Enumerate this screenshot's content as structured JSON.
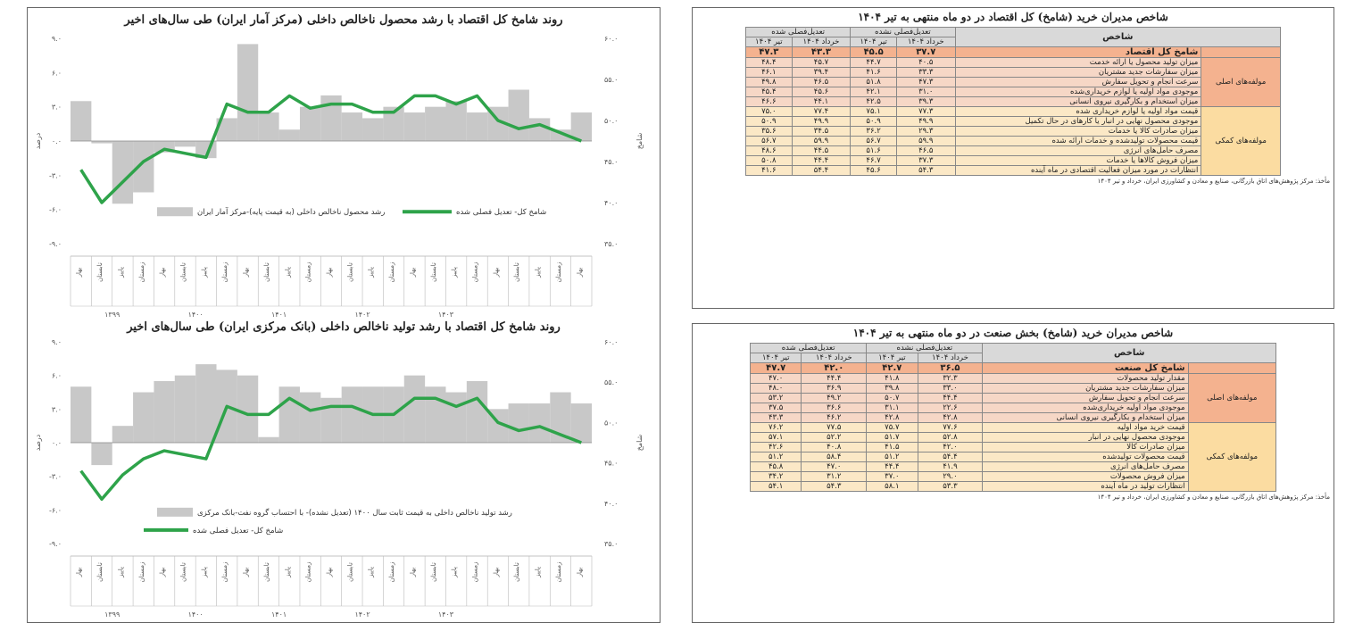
{
  "colors": {
    "bar": "#c8c8c8",
    "line": "#2ea34a",
    "axis": "#888888",
    "op_total": "#f4b28f",
    "op_row": "#f6d7c6",
    "sp_row": "#fbe8c6"
  },
  "chart_data": [
    {
      "type": "bar",
      "title": "روند شامخ کل اقتصاد با رشد محصول ناخالص داخلی (مرکز آمار ایران) طی سال‌های اخیر",
      "left_ticks": [
        "۹.۰",
        "۶.۰",
        "۳.۰",
        "۰.۰",
        "-۳.۰",
        "-۶.۰",
        "-۹.۰"
      ],
      "right_ticks": [
        "۶۰.۰",
        "۵۵.۰",
        "۵۰.۰",
        "۴۵.۰",
        "۴۰.۰",
        "۳۵.۰"
      ],
      "ylim_left": [
        -9,
        9
      ],
      "ylim_right": [
        35,
        60
      ],
      "ylabel_left": "درصد",
      "ylabel_right": "شامخ",
      "legend_bar": "رشد محصول ناخالص داخلی (به قیمت پایه)-مرکز آمار ایران",
      "legend_line": "شامخ کل- تعدیل فصلی شده",
      "year_labels": [
        "۱۳۹۹",
        "۱۴۰۰",
        "۱۴۰۱",
        "۱۴۰۲",
        "۱۴۰۳"
      ],
      "bar_values": [
        3.5,
        -0.2,
        -5.5,
        -4.5,
        -1.0,
        -0.5,
        -1.5,
        2.0,
        8.5,
        2.5,
        1.0,
        3.0,
        4.0,
        2.5,
        2.0,
        3.0,
        2.5,
        3.0,
        3.5,
        2.5,
        3.0,
        4.5,
        2.0,
        1.0,
        2.5
      ],
      "line_values": [
        44.0,
        40.0,
        42.5,
        45.0,
        46.5,
        46.0,
        45.5,
        52.0,
        51.0,
        51.0,
        53.0,
        51.5,
        52.0,
        52.0,
        51.0,
        51.0,
        53.0,
        53.0,
        52.0,
        53.0,
        50.0,
        49.0,
        49.5,
        48.5,
        47.5
      ]
    },
    {
      "type": "bar",
      "title": "روند شامخ کل اقتصاد با رشد تولید ناخالص داخلی (بانک مرکزی ایران) طی سال‌های اخیر",
      "left_ticks": [
        "۹.۰",
        "۶.۰",
        "۳.۰",
        "۰.۰",
        "-۳.۰",
        "-۶.۰",
        "-۹.۰"
      ],
      "right_ticks": [
        "۶۰.۰",
        "۵۵.۰",
        "۵۰.۰",
        "۴۵.۰",
        "۴۰.۰",
        "۳۵.۰"
      ],
      "ylim_left": [
        -9,
        9
      ],
      "ylim_right": [
        35,
        60
      ],
      "ylabel_left": "درصد",
      "ylabel_right": "شامخ",
      "legend_bar": "رشد تولید ناخالص داخلی به قیمت ثابت سال ۱۴۰۰ (تعدیل نشده)- با احتساب گروه نفت-بانک مرکزی",
      "legend_line": "شامخ کل- تعدیل فصلی شده",
      "year_labels": [
        "۱۳۹۹",
        "۱۴۰۰",
        "۱۴۰۱",
        "۱۴۰۲",
        "۱۴۰۳"
      ],
      "bar_values": [
        5.0,
        -2.0,
        1.5,
        4.5,
        5.5,
        6.0,
        7.0,
        6.5,
        6.0,
        0.5,
        5.0,
        4.5,
        4.0,
        5.0,
        5.0,
        5.0,
        6.0,
        5.0,
        4.5,
        5.5,
        3.0,
        3.5,
        3.5,
        4.5,
        3.5
      ],
      "line_values": [
        44.0,
        40.5,
        43.5,
        45.5,
        46.5,
        46.0,
        45.5,
        52.0,
        51.0,
        51.0,
        53.0,
        51.5,
        52.0,
        52.0,
        51.0,
        51.0,
        53.0,
        53.0,
        52.0,
        53.0,
        50.0,
        49.0,
        49.5,
        48.5,
        47.5
      ]
    }
  ],
  "table1": {
    "title": "شاخص مدیران خرید (شامخ) کل اقتصاد در دو ماه منتهی به تیر ۱۴۰۴",
    "header_index": "شاخص",
    "header_groups": [
      "تعدیل‌فصلی نشده",
      "تعدیل‌فصلی شده"
    ],
    "header_months": [
      "خرداد ۱۴۰۴",
      "تیر ۱۴۰۴",
      "خرداد ۱۴۰۴",
      "تیر ۱۴۰۴"
    ],
    "total": {
      "label": "شامخ کل اقتصاد",
      "values": [
        "۳۷.۷",
        "۴۵.۵",
        "۴۳.۳",
        "۴۷.۳"
      ]
    },
    "group_op": "مولفه‌های اصلی",
    "group_sp": "مولفه‌های کمکی",
    "op_rows": [
      {
        "label": "میزان تولید محصول یا ارائه خدمت",
        "values": [
          "۴۰.۵",
          "۴۴.۷",
          "۴۵.۷",
          "۴۸.۴"
        ]
      },
      {
        "label": "میزان سفارشات جدید مشتریان",
        "values": [
          "۳۳.۳",
          "۴۱.۶",
          "۳۹.۴",
          "۴۶.۱"
        ]
      },
      {
        "label": "سرعت انجام و تحویل سفارش",
        "values": [
          "۴۷.۳",
          "۵۱.۸",
          "۴۶.۵",
          "۴۹.۸"
        ]
      },
      {
        "label": "موجودی مواد اولیه یا لوازم خریداری‌شده",
        "values": [
          "۳۱.۰",
          "۴۲.۱",
          "۴۵.۶",
          "۴۵.۴"
        ]
      },
      {
        "label": "میزان استخدام و بکارگیری نیروی انسانی",
        "values": [
          "۳۹.۳",
          "۴۲.۵",
          "۴۴.۱",
          "۴۶.۶"
        ]
      }
    ],
    "sp_rows": [
      {
        "label": "قیمت مواد اولیه یا لوازم خریداری شده",
        "values": [
          "۷۷.۳",
          "۷۵.۱",
          "۷۷.۴",
          "۷۵.۰"
        ]
      },
      {
        "label": "موجودی محصول نهایی در انبار یا کارهای در حال تکمیل",
        "values": [
          "۴۹.۹",
          "۵۰.۹",
          "۴۹.۹",
          "۵۰.۹"
        ]
      },
      {
        "label": "میزان صادرات کالا یا خدمات",
        "values": [
          "۲۹.۳",
          "۳۶.۲",
          "۳۴.۵",
          "۳۵.۶"
        ]
      },
      {
        "label": "قیمت محصولات تولیدشده و خدمات ارائه شده",
        "values": [
          "۵۹.۹",
          "۵۶.۷",
          "۵۹.۹",
          "۵۶.۷"
        ]
      },
      {
        "label": "مصرف حامل‌های انرژی",
        "values": [
          "۴۶.۵",
          "۵۱.۶",
          "۴۴.۵",
          "۴۸.۶"
        ]
      },
      {
        "label": "میزان فروش کالاها یا خدمات",
        "values": [
          "۳۷.۳",
          "۴۶.۷",
          "۴۴.۴",
          "۵۰.۸"
        ]
      },
      {
        "label": "انتظارات در مورد میزان فعالیت اقتصادی در ماه آینده",
        "values": [
          "۵۴.۳",
          "۴۵.۶",
          "۵۴.۴",
          "۴۱.۶"
        ]
      }
    ],
    "source": "مأخذ: مرکز پژوهش‌های اتاق بازرگانی، صنایع و معادن و کشاورزی ایران، خرداد و تیر ۱۴۰۴"
  },
  "table2": {
    "title": "شاخص مدیران خرید (شامخ) بخش صنعت در دو ماه منتهی به تیر ۱۴۰۴",
    "header_index": "شاخص",
    "header_groups": [
      "تعدیل‌فصلی نشده",
      "تعدیل‌فصلی شده"
    ],
    "header_months": [
      "خرداد ۱۴۰۴",
      "تیر ۱۴۰۴",
      "خرداد ۱۴۰۴",
      "تیر ۱۴۰۴"
    ],
    "total": {
      "label": "شامخ کل صنعت",
      "values": [
        "۳۶.۵",
        "۴۲.۷",
        "۴۲.۰",
        "۴۷.۷"
      ]
    },
    "group_op": "مولفه‌های اصلی",
    "group_sp": "مولفه‌های کمکی",
    "op_rows": [
      {
        "label": "مقدار تولید محصولات",
        "values": [
          "۳۲.۳",
          "۴۱.۸",
          "۴۴.۴",
          "۴۷.۰"
        ]
      },
      {
        "label": "میزان سفارشات جدید مشتریان",
        "values": [
          "۳۳.۰",
          "۳۹.۸",
          "۳۶.۹",
          "۴۸.۰"
        ]
      },
      {
        "label": "سرعت انجام و تحویل سفارش",
        "values": [
          "۴۴.۴",
          "۵۰.۷",
          "۴۹.۲",
          "۵۳.۲"
        ]
      },
      {
        "label": "موجودی مواد اولیه خریداری‌شده",
        "values": [
          "۲۲.۶",
          "۳۱.۱",
          "۳۶.۶",
          "۳۷.۵"
        ]
      },
      {
        "label": "میزان استخدام و بکارگیری نیروی انسانی",
        "values": [
          "۴۲.۸",
          "۴۲.۸",
          "۴۶.۲",
          "۴۳.۳"
        ]
      }
    ],
    "sp_rows": [
      {
        "label": "قیمت خرید مواد اولیه",
        "values": [
          "۷۷.۶",
          "۷۵.۷",
          "۷۷.۵",
          "۷۶.۲"
        ]
      },
      {
        "label": "موجودی محصول نهایی در انبار",
        "values": [
          "۵۲.۸",
          "۵۱.۷",
          "۵۲.۲",
          "۵۷.۱"
        ]
      },
      {
        "label": "میزان صادرات کالا",
        "values": [
          "۴۲.۰",
          "۴۱.۵",
          "۴۰.۸",
          "۴۲.۶"
        ]
      },
      {
        "label": "قیمت محصولات تولیدشده",
        "values": [
          "۵۴.۴",
          "۵۱.۲",
          "۵۸.۴",
          "۵۱.۲"
        ]
      },
      {
        "label": "مصرف حامل‌های انرژی",
        "values": [
          "۴۱.۹",
          "۴۴.۴",
          "۴۷.۰",
          "۴۵.۸"
        ]
      },
      {
        "label": "میزان فروش محصولات",
        "values": [
          "۲۹.۰",
          "۳۷.۰",
          "۳۱.۲",
          "۳۴.۲"
        ]
      },
      {
        "label": "انتظارات تولید در ماه آینده",
        "values": [
          "۵۳.۳",
          "۵۸.۱",
          "۵۴.۳",
          "۵۴.۱"
        ]
      }
    ],
    "source": "مأخذ: مرکز پژوهش‌های اتاق بازرگانی، صنایع و معادن و کشاورزی ایران، خرداد و تیر ۱۴۰۴"
  }
}
